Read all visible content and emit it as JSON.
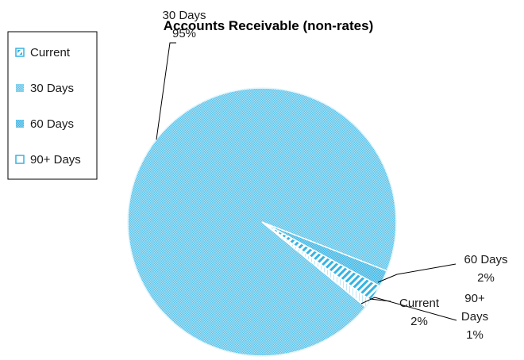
{
  "chart_data": {
    "type": "pie",
    "title": "Accounts Receivable (non-rates)",
    "slices": [
      {
        "name": "Current",
        "value": 2,
        "label_lines": [
          "Current",
          "2%"
        ]
      },
      {
        "name": "30 Days",
        "value": 95,
        "label_lines": [
          "30 Days",
          "95%"
        ]
      },
      {
        "name": "60 Days",
        "value": 2,
        "label_lines": [
          "60 Days",
          "2%"
        ]
      },
      {
        "name": "90+ Days",
        "value": 1,
        "label_lines": [
          "90+",
          "Days",
          "1%"
        ]
      }
    ],
    "legend": {
      "position": "left",
      "entries": [
        "Current",
        "30 Days",
        "60 Days",
        "90+ Days"
      ]
    },
    "colors": {
      "fill": "#7fd2ef",
      "hatch": "#35b3e2",
      "border": "#ffffff"
    }
  }
}
